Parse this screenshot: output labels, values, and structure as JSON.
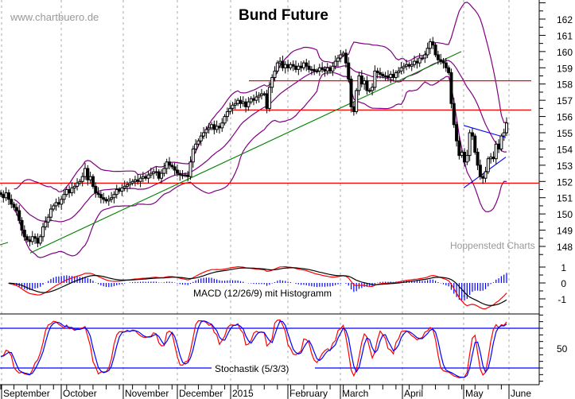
{
  "header": {
    "website": "www.chartbuero.de",
    "title": "Bund Future",
    "source": "Hoppenstedt Charts"
  },
  "chart_data": [
    {
      "type": "candlestick",
      "title": "Bund Future",
      "ylim": [
        147.5,
        163
      ],
      "y_ticks": [
        "148",
        "149",
        "150",
        "151",
        "152",
        "153",
        "154",
        "155",
        "156",
        "157",
        "158",
        "159",
        "160",
        "161",
        "162"
      ],
      "x_tick_labels": [
        "September",
        "October",
        "November",
        "December",
        "2015",
        "February",
        "March",
        "April",
        "May",
        "June"
      ],
      "grid": "vertical dashed at month starts",
      "closes": [
        151.2,
        151.0,
        151.3,
        150.9,
        150.6,
        150.4,
        150.2,
        149.6,
        149.0,
        148.6,
        148.4,
        148.3,
        148.6,
        148.5,
        148.2,
        148.6,
        149.2,
        149.5,
        149.8,
        150.3,
        150.5,
        150.7,
        150.6,
        150.9,
        151.2,
        151.5,
        151.3,
        151.6,
        151.7,
        151.9,
        152.0,
        152.3,
        152.8,
        152.1,
        152.3,
        151.7,
        151.3,
        151.2,
        151.0,
        150.9,
        150.8,
        150.9,
        151.0,
        151.2,
        151.5,
        151.4,
        151.6,
        151.7,
        151.8,
        151.9,
        152.0,
        152.1,
        152.0,
        152.2,
        152.3,
        152.2,
        152.4,
        152.5,
        152.6,
        152.6,
        152.2,
        152.5,
        152.8,
        153.2,
        153.0,
        152.9,
        152.7,
        152.5,
        152.4,
        152.4,
        152.4,
        152.3,
        153.2,
        154.0,
        154.3,
        154.5,
        154.8,
        155.0,
        155.2,
        155.3,
        155.5,
        155.2,
        155.4,
        155.3,
        155.6,
        156.0,
        156.3,
        156.5,
        156.7,
        156.8,
        157.0,
        156.8,
        156.9,
        156.6,
        156.9,
        157.1,
        157.0,
        157.2,
        157.3,
        157.4,
        157.4,
        156.5,
        157.8,
        158.4,
        158.8,
        159.3,
        159.4,
        159.0,
        159.2,
        159.0,
        159.2,
        159.1,
        158.9,
        159.1,
        159.0,
        159.3,
        159.1,
        158.9,
        158.9,
        158.8,
        158.8,
        159.0,
        158.9,
        158.8,
        159.0,
        158.8,
        159.1,
        159.4,
        159.6,
        159.8,
        159.9,
        159.3,
        158.3,
        156.6,
        156.3,
        157.6,
        158.5,
        158.0,
        158.2,
        157.6,
        157.6,
        157.8,
        158.8,
        158.7,
        158.6,
        158.5,
        158.5,
        158.4,
        158.6,
        158.4,
        158.7,
        158.8,
        159.0,
        159.1,
        159.2,
        159.1,
        159.2,
        159.4,
        159.3,
        159.6,
        159.6,
        159.8,
        160.2,
        160.6,
        160.4,
        159.8,
        159.5,
        159.4,
        159.3,
        159.0,
        158.7,
        156.8,
        155.5,
        154.5,
        153.6,
        153.8,
        153.2,
        153.6,
        155.0,
        154.8,
        153.8,
        153.0,
        152.3,
        152.2,
        152.6,
        153.4,
        153.5,
        153.4,
        154.3,
        154.0,
        154.8,
        155.0,
        155.6
      ],
      "overlays": {
        "bollinger": {
          "period": 20,
          "stddev": 2,
          "color": "#800080"
        },
        "horizontal_lines": [
          {
            "value": 158.2,
            "color": "#ff0000"
          },
          {
            "value": 156.4,
            "color": "#ff0000"
          },
          {
            "value": 151.9,
            "color": "#ff0000"
          }
        ],
        "trendlines": [
          {
            "color": "#008000",
            "from": [
              148,
              147.6
            ],
            "to": [
              578,
              160.0
            ]
          },
          {
            "color": "#0000ff",
            "from": [
              583,
              155.45
            ],
            "to": [
              636,
              154.7
            ]
          },
          {
            "color": "#0000ff",
            "from": [
              583,
              151.6
            ],
            "to": [
              636,
              153.5
            ]
          }
        ]
      }
    },
    {
      "type": "line",
      "label": "MACD (12/26/9) mit Histogramm",
      "ylim": [
        -1.5,
        1.5
      ],
      "y_ticks": [
        "1",
        "0",
        "-1"
      ],
      "series_colors": {
        "macd": "#ff0000",
        "signal": "#000000",
        "histogram": "#0000ff"
      }
    },
    {
      "type": "line",
      "label": "Stochastik (5/3/3)",
      "ylim": [
        0,
        100
      ],
      "y_ticks": [
        "50"
      ],
      "levels": [
        80,
        20
      ],
      "series_colors": {
        "k": "#ff0000",
        "d": "#0000ff",
        "levels": "#0000ff"
      }
    }
  ]
}
